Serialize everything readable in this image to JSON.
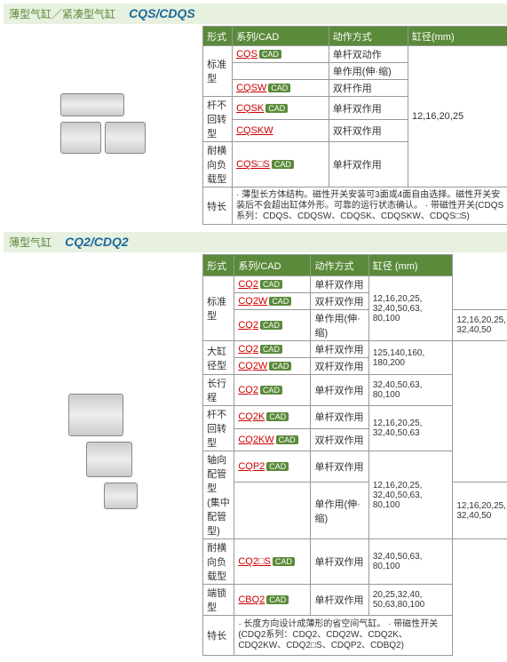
{
  "s1": {
    "title1": "薄型气缸／紧凑型气缸",
    "title2": "CQS/CDQS",
    "headers": [
      "形式",
      "系列/CAD",
      "动作方式",
      "缸径(mm)"
    ],
    "bore": "12,16,20,25",
    "rows": [
      {
        "f": "标准型",
        "s": "CQS",
        "cad": 1,
        "a": "单杆双动作",
        "fr": 3
      },
      {
        "s": "",
        "a": "单作用(伸·缩)"
      },
      {
        "s": "CQSW",
        "cad": 1,
        "a": "双杆作用"
      },
      {
        "f": "杆不回转型",
        "s": "CQSK",
        "cad": 1,
        "a": "单杆双作用",
        "fr": 2
      },
      {
        "s": "CQSKW",
        "a": "双杆双作用"
      },
      {
        "f": "耐横向负载型",
        "s": "CQS□S",
        "cad": 1,
        "a": "单杆双作用",
        "fr": 1
      }
    ],
    "feat_l": "特长",
    "feat": "· 薄型长方体结构。磁性开关安装可3面或4面自由选择。磁性开关安装后不会超出缸体外形。可靠的运行状态确认。\n· 带磁性开关(CDQS系列：CDQS、CDQSW、CDQSK、CDQSKW、CDQS□S)"
  },
  "s2": {
    "title1": "薄型气缸",
    "title2": "CQ2/CDQ2",
    "headers": [
      "形式",
      "系列/CAD",
      "动作方式",
      "缸径 (mm)"
    ],
    "rows": [
      {
        "f": "标准型",
        "s": "CQ2",
        "cad": 1,
        "a": "单杆双作用",
        "b": "12,16,20,25,\n32,40,50,63,\n80,100",
        "fr": 3
      },
      {
        "s": "CQ2W",
        "cad": 1,
        "a": "双杆双作用"
      },
      {
        "s": "CQ2",
        "cad": 1,
        "a": "单作用(伸·缩)",
        "b": "12,16,20,25,\n32,40,50"
      },
      {
        "f": "大缸径型",
        "s": "CQ2",
        "cad": 1,
        "a": "单杆双作用",
        "b": "125,140,160,\n180,200",
        "fr": 2
      },
      {
        "s": "CQ2W",
        "cad": 1,
        "a": "双杆双作用"
      },
      {
        "f": "长行程",
        "s": "CQ2",
        "cad": 1,
        "a": "单杆双作用",
        "b": "32,40,50,63,\n80,100"
      },
      {
        "f": "杆不回转型",
        "s": "CQ2K",
        "cad": 1,
        "a": "单杆双作用",
        "b": "12,16,20,25,\n32,40,50,63",
        "fr": 2
      },
      {
        "s": "CQ2KW",
        "cad": 1,
        "a": "双杆双作用"
      },
      {
        "f": "轴向配管型\n(集中配管型)",
        "s": "CQP2",
        "cad": 1,
        "a": "单杆双作用",
        "b": "12,16,20,25,\n32,40,50,63,\n80,100",
        "fr": 2
      },
      {
        "s": "",
        "a": "单作用(伸·缩)",
        "b": "12,16,20,25,\n32,40,50"
      },
      {
        "f": "耐横向负载型",
        "s": "CQ2□S",
        "cad": 1,
        "a": "单杆双作用",
        "b": "32,40,50,63,\n80,100"
      },
      {
        "f": "端锁型",
        "s": "CBQ2",
        "cad": 1,
        "a": "单杆双作用",
        "b": "20,25,32,40,\n50,63,80,100"
      }
    ],
    "feat_l": "特长",
    "feat": "· 长度方向设计成薄形的省空间气缸。\n· 带磁性开关(CDQ2系列：CDQ2、CDQ2W、CDQ2K、CDQ2KW、CDQ2□S、CDQP2、CDBQ2)"
  }
}
